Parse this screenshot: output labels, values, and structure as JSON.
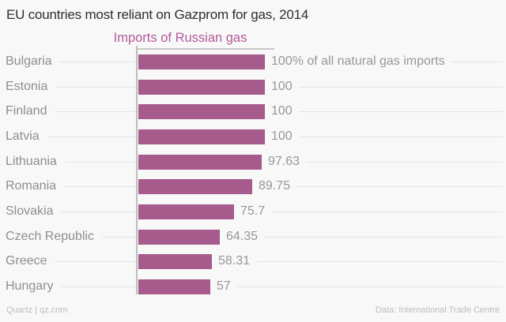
{
  "header": {
    "title": "EU countries most reliant on Gazprom for gas, 2014"
  },
  "legend": {
    "series_label": "Imports of Russian gas"
  },
  "chart_data": {
    "type": "bar",
    "orientation": "horizontal",
    "title": "EU countries most reliant on Gazprom for gas, 2014",
    "series_label": "Imports of Russian gas",
    "categories": [
      "Bulgaria",
      "Estonia",
      "Finland",
      "Latvia",
      "Lithuania",
      "Romania",
      "Slovakia",
      "Czech Republic",
      "Greece",
      "Hungary"
    ],
    "values": [
      100,
      100,
      100,
      100,
      97.63,
      89.75,
      75.7,
      64.35,
      58.31,
      57
    ],
    "value_labels": [
      "100% of all natural gas imports",
      "100",
      "100",
      "100",
      "97.63",
      "89.75",
      "75.7",
      "64.35",
      "58.31",
      "57"
    ],
    "unit": "% of all natural gas imports",
    "xlim": [
      0,
      100
    ],
    "legend_position": "top-center",
    "grid": "row-leader-lines",
    "bar_color": "#a75a8c",
    "accent_color": "#b45a9d"
  },
  "footer": {
    "source_left": "Quartz | qz.com",
    "source_right": "Data: International Trade Centre"
  }
}
